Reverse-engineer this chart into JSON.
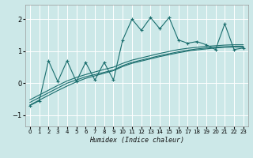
{
  "title": "",
  "xlabel": "Humidex (Indice chaleur)",
  "ylabel": "",
  "bg_color": "#cce8e8",
  "grid_color": "#b0d8d8",
  "line_color": "#1a6e6e",
  "xlim": [
    -0.5,
    23.5
  ],
  "ylim": [
    -1.35,
    2.45
  ],
  "xticks": [
    0,
    1,
    2,
    3,
    4,
    5,
    6,
    7,
    8,
    9,
    10,
    11,
    12,
    13,
    14,
    15,
    16,
    17,
    18,
    19,
    20,
    21,
    22,
    23
  ],
  "yticks": [
    -1,
    0,
    1,
    2
  ],
  "main_x": [
    0,
    1,
    2,
    3,
    4,
    5,
    6,
    7,
    8,
    9,
    10,
    11,
    12,
    13,
    14,
    15,
    16,
    17,
    18,
    19,
    20,
    21,
    22,
    23
  ],
  "main_y": [
    -0.7,
    -0.55,
    0.7,
    0.05,
    0.7,
    0.05,
    0.65,
    0.1,
    0.65,
    0.1,
    1.35,
    2.0,
    1.65,
    2.05,
    1.7,
    2.05,
    1.35,
    1.25,
    1.3,
    1.2,
    1.05,
    1.85,
    1.05,
    1.1
  ],
  "trend1_x": [
    0,
    1,
    2,
    3,
    4,
    5,
    6,
    7,
    8,
    9,
    10,
    11,
    12,
    13,
    14,
    15,
    16,
    17,
    18,
    19,
    20,
    21,
    22,
    23
  ],
  "trend1_y": [
    -0.6,
    -0.45,
    -0.3,
    -0.15,
    -0.0,
    0.1,
    0.2,
    0.27,
    0.34,
    0.41,
    0.55,
    0.65,
    0.72,
    0.79,
    0.86,
    0.92,
    0.98,
    1.03,
    1.07,
    1.1,
    1.12,
    1.14,
    1.15,
    1.15
  ],
  "trend2_x": [
    0,
    1,
    2,
    3,
    4,
    5,
    6,
    7,
    8,
    9,
    10,
    11,
    12,
    13,
    14,
    15,
    16,
    17,
    18,
    19,
    20,
    21,
    22,
    23
  ],
  "trend2_y": [
    -0.68,
    -0.53,
    -0.38,
    -0.23,
    -0.09,
    0.04,
    0.15,
    0.23,
    0.31,
    0.39,
    0.52,
    0.62,
    0.69,
    0.76,
    0.83,
    0.89,
    0.95,
    1.0,
    1.04,
    1.07,
    1.1,
    1.12,
    1.13,
    1.13
  ],
  "trend3_x": [
    0,
    1,
    2,
    3,
    4,
    5,
    6,
    7,
    8,
    9,
    10,
    11,
    12,
    13,
    14,
    15,
    16,
    17,
    18,
    19,
    20,
    21,
    22,
    23
  ],
  "trend3_y": [
    -0.52,
    -0.37,
    -0.22,
    -0.07,
    0.07,
    0.18,
    0.27,
    0.35,
    0.43,
    0.5,
    0.62,
    0.72,
    0.79,
    0.86,
    0.93,
    0.99,
    1.05,
    1.09,
    1.12,
    1.15,
    1.17,
    1.19,
    1.2,
    1.2
  ]
}
